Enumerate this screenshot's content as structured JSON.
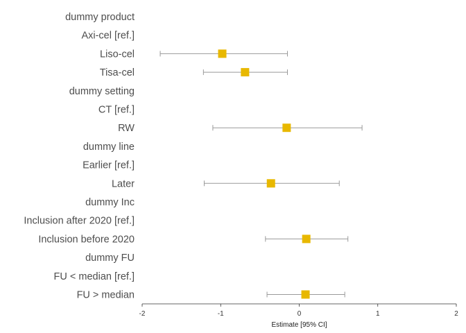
{
  "chart_data": {
    "type": "forest",
    "xlabel": "Estimate [95% CI]",
    "xlim": [
      -2,
      2
    ],
    "xticks": [
      -2,
      -1,
      0,
      1,
      2
    ],
    "xtick_labels": [
      "-2",
      "-1",
      "0",
      "1",
      "2"
    ],
    "marker_color": "#E8B800",
    "ci_color": "#999999",
    "rows": [
      {
        "label": "dummy product",
        "estimate": null,
        "lower": null,
        "upper": null
      },
      {
        "label": "Axi-cel [ref.]",
        "estimate": null,
        "lower": null,
        "upper": null
      },
      {
        "label": "Liso-cel",
        "estimate": -0.98,
        "lower": -1.77,
        "upper": -0.15
      },
      {
        "label": "Tisa-cel",
        "estimate": -0.69,
        "lower": -1.22,
        "upper": -0.15
      },
      {
        "label": "dummy setting",
        "estimate": null,
        "lower": null,
        "upper": null
      },
      {
        "label": "CT [ref.]",
        "estimate": null,
        "lower": null,
        "upper": null
      },
      {
        "label": "RW",
        "estimate": -0.16,
        "lower": -1.1,
        "upper": 0.8
      },
      {
        "label": "dummy line",
        "estimate": null,
        "lower": null,
        "upper": null
      },
      {
        "label": "Earlier [ref.]",
        "estimate": null,
        "lower": null,
        "upper": null
      },
      {
        "label": "Later",
        "estimate": -0.36,
        "lower": -1.21,
        "upper": 0.51
      },
      {
        "label": "dummy Inc",
        "estimate": null,
        "lower": null,
        "upper": null
      },
      {
        "label": "Inclusion after 2020 [ref.]",
        "estimate": null,
        "lower": null,
        "upper": null
      },
      {
        "label": "Inclusion before 2020",
        "estimate": 0.09,
        "lower": -0.43,
        "upper": 0.62
      },
      {
        "label": "dummy FU",
        "estimate": null,
        "lower": null,
        "upper": null
      },
      {
        "label": "FU < median [ref.]",
        "estimate": null,
        "lower": null,
        "upper": null
      },
      {
        "label": "FU > median",
        "estimate": 0.08,
        "lower": -0.41,
        "upper": 0.58
      }
    ]
  }
}
